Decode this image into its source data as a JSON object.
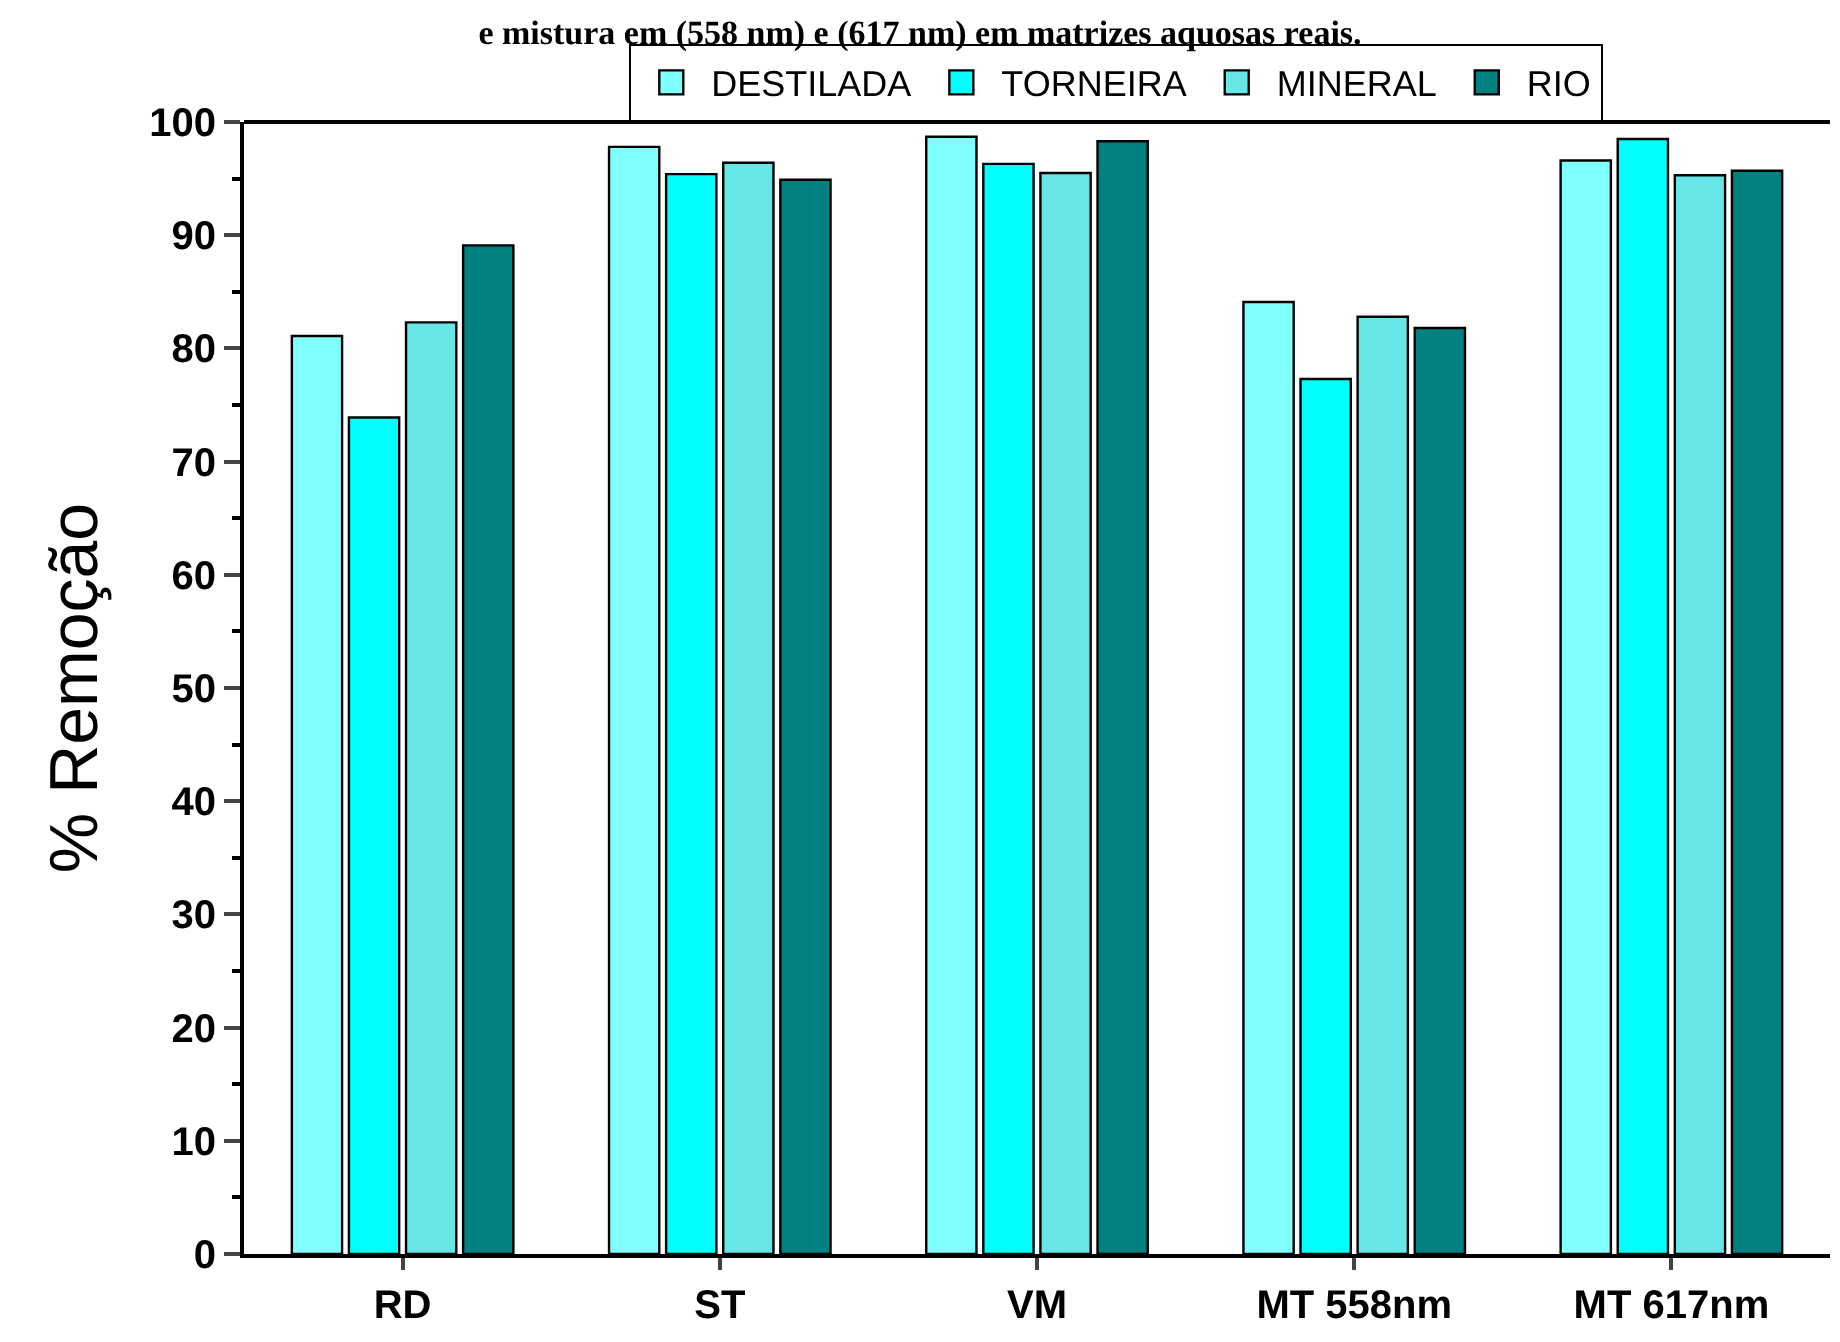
{
  "chart_data": {
    "type": "bar",
    "title": "e mistura em (558 nm) e (617 nm) em matrizes aquosas reais.",
    "ylabel": "% Remoção",
    "categories": [
      "RD",
      "ST",
      "VM",
      "MT 558nm",
      "MT 617nm"
    ],
    "series": [
      {
        "name": "DESTILADA",
        "color": "#80ffff",
        "values": [
          81.1,
          97.8,
          98.7,
          84.1,
          96.6
        ]
      },
      {
        "name": "TORNEIRA",
        "color": "#00ffff",
        "values": [
          73.9,
          95.4,
          96.3,
          77.3,
          98.5
        ]
      },
      {
        "name": "MINERAL",
        "color": "#66e6e6",
        "values": [
          82.3,
          96.4,
          95.5,
          82.8,
          95.3
        ]
      },
      {
        "name": "RIO",
        "color": "#008080",
        "values": [
          89.1,
          94.9,
          98.3,
          81.8,
          95.7
        ]
      }
    ],
    "ylim": [
      0,
      100
    ],
    "yticks": [
      0,
      10,
      20,
      30,
      40,
      50,
      60,
      70,
      80,
      90,
      100
    ],
    "legend": "top"
  }
}
